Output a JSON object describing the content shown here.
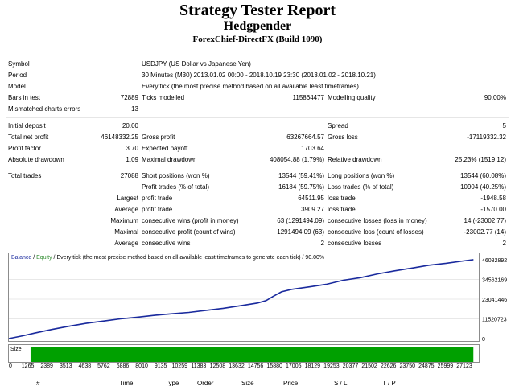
{
  "header": {
    "title": "Strategy Tester Report",
    "expert": "Hedgpender",
    "server_build": "ForexChief-DirectFX (Build 1090)"
  },
  "settings": {
    "symbol_label": "Symbol",
    "symbol_value": "USDJPY (US Dollar vs Japanese Yen)",
    "period_label": "Period",
    "period_value": "30 Minutes (M30) 2013.01.02 00:00 - 2018.10.19 23:30 (2013.01.02 - 2018.10.21)",
    "model_label": "Model",
    "model_value": "Every tick (the most precise method based on all available least timeframes)",
    "bars_label": "Bars in test",
    "bars_value": "72889",
    "ticks_label": "Ticks modelled",
    "ticks_value": "115864477",
    "quality_label": "Modelling quality",
    "quality_value": "90.00%",
    "mismatch_label": "Mismatched charts errors",
    "mismatch_value": "13"
  },
  "results": {
    "initial_deposit_label": "Initial deposit",
    "initial_deposit": "20.00",
    "spread_label": "Spread",
    "spread": "5",
    "net_profit_label": "Total net profit",
    "net_profit": "46148332.25",
    "gross_profit_label": "Gross profit",
    "gross_profit": "63267664.57",
    "gross_loss_label": "Gross loss",
    "gross_loss": "-17119332.32",
    "profit_factor_label": "Profit factor",
    "profit_factor": "3.70",
    "expected_payoff_label": "Expected payoff",
    "expected_payoff": "1703.64",
    "abs_dd_label": "Absolute drawdown",
    "abs_dd": "1.09",
    "max_dd_label": "Maximal drawdown",
    "max_dd": "408054.88 (1.79%)",
    "rel_dd_label": "Relative drawdown",
    "rel_dd": "25.23% (1519.12)",
    "total_trades_label": "Total trades",
    "total_trades": "27088",
    "short_label": "Short positions (won %)",
    "short": "13544 (59.41%)",
    "long_label": "Long positions (won %)",
    "long": "13544 (60.08%)",
    "profit_trades_label": "Profit trades (% of total)",
    "profit_trades": "16184 (59.75%)",
    "loss_trades_label": "Loss trades (% of total)",
    "loss_trades": "10904 (40.25%)",
    "largest_label": "Largest",
    "largest_profit_label": "profit trade",
    "largest_profit": "64511.95",
    "largest_loss_label": "loss trade",
    "largest_loss": "-1948.58",
    "average_label": "Average",
    "average_profit_label": "profit trade",
    "average_profit": "3909.27",
    "average_loss_label": "loss trade",
    "average_loss": "-1570.00",
    "maximum_label": "Maximum",
    "max_cons_wins_label": "consecutive wins (profit in money)",
    "max_cons_wins": "63 (1291494.09)",
    "max_cons_losses_label": "consecutive losses (loss in money)",
    "max_cons_losses": "14 (-23002.77)",
    "maximal_label": "Maximal",
    "maximal_profit_label": "consecutive profit (count of wins)",
    "maximal_profit": "1291494.09 (63)",
    "maximal_loss_label": "consecutive loss (count of losses)",
    "maximal_loss": "-23002.77 (14)",
    "avg_cons_label": "Average",
    "avg_cons_wins_label": "consecutive wins",
    "avg_cons_wins": "2",
    "avg_cons_losses_label": "consecutive losses",
    "avg_cons_losses": "2"
  },
  "chart_data": {
    "type": "line",
    "legend_balance": "Balance",
    "legend_slash": " / ",
    "legend_equity": "Equity",
    "legend_rest": " / Every tick (the most precise method based on all available least timeframes to generate each tick) / 90.00%",
    "colors": {
      "balance": "#1a2a9e",
      "equity": "#2e8b2e",
      "size": "#00a000",
      "legend_balance": "#1a2a9e",
      "legend_equity": "#2e8b2e"
    },
    "size_label": "Size",
    "y_ticks": [
      "46082892",
      "34562169",
      "23041446",
      "11520723",
      "0"
    ],
    "y_tick_values": [
      46082892,
      34562169,
      23041446,
      11520723,
      0
    ],
    "ylim": [
      0,
      46082892
    ],
    "x_ticks": [
      "0",
      "1265",
      "2389",
      "3513",
      "4638",
      "5762",
      "6886",
      "8010",
      "9135",
      "10259",
      "11383",
      "12508",
      "13632",
      "14756",
      "15880",
      "17005",
      "18129",
      "19253",
      "20377",
      "21502",
      "22626",
      "23750",
      "24875",
      "25999",
      "27123"
    ],
    "xlim": [
      0,
      27123
    ],
    "series": [
      {
        "x": [
          0,
          800,
          1500,
          2500,
          3500,
          4500,
          5500,
          6500,
          7500,
          8500,
          9500,
          10500,
          11500,
          12500,
          13500,
          14500,
          15000,
          15400,
          15900,
          16500,
          17500,
          18500,
          19500,
          20500,
          21500,
          22500,
          23500,
          24500,
          25500,
          26500,
          27088
        ],
        "y": [
          20,
          1600000,
          3200000,
          5300000,
          7200000,
          8900000,
          10200000,
          11500000,
          12500000,
          13600000,
          14500000,
          15300000,
          16500000,
          17700000,
          19200000,
          20800000,
          22200000,
          24600000,
          27300000,
          28800000,
          30200000,
          31700000,
          34100000,
          35600000,
          37800000,
          39600000,
          41200000,
          42900000,
          44000000,
          45400000,
          46148332
        ]
      }
    ]
  },
  "trades_table": {
    "columns": [
      "#",
      "Time",
      "Type",
      "Order",
      "Size",
      "Price",
      "S / L",
      "T / P"
    ]
  }
}
